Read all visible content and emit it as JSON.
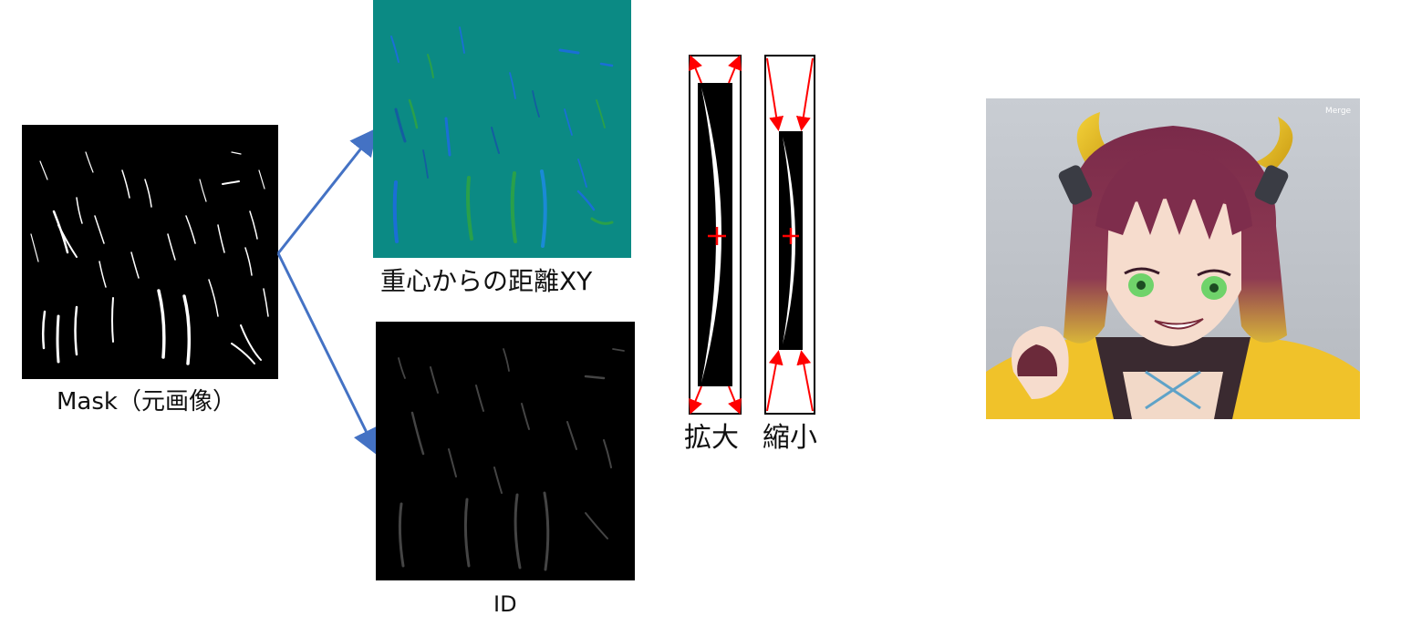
{
  "labels": {
    "mask": "Mask（元画像）",
    "distance_xy": "重心からの距離XY",
    "id": "ID",
    "enlarge": "拡大",
    "shrink": "縮小"
  },
  "screenshot": {
    "overlay_text": "Merge"
  },
  "colors": {
    "arrow_blue": "#4472c4",
    "scale_red": "#ff0000",
    "teal_bg": "#0b8a84",
    "mask_bg": "#000000"
  }
}
